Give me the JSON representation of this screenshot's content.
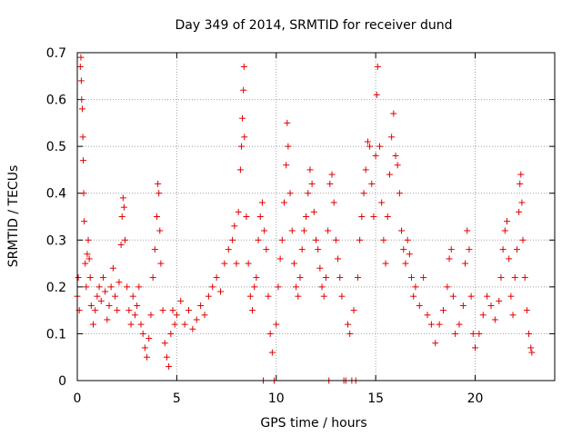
{
  "chart_data": {
    "type": "scatter",
    "title": "Day 349 of 2014, SRMTID for receiver dund",
    "xlabel": "GPS time / hours",
    "ylabel": "SRMTID / TECUs",
    "xlim": [
      0,
      24
    ],
    "ylim": [
      0,
      0.7
    ],
    "x_ticks": [
      0,
      5,
      10,
      15,
      20
    ],
    "x_tick_labels": [
      "0",
      "5",
      "10",
      "15",
      "20"
    ],
    "y_ticks": [
      0,
      0.1,
      0.2,
      0.3,
      0.4,
      0.5,
      0.6,
      0.7
    ],
    "y_tick_labels": [
      "0",
      "0.1",
      "0.2",
      "0.3",
      "0.4",
      "0.5",
      "0.6",
      "0.7"
    ],
    "grid": true,
    "marker": "+",
    "series": [
      {
        "name": "SRMTID",
        "color": "#e00000",
        "points": [
          [
            0.0,
            0.18
          ],
          [
            0.05,
            0.22
          ],
          [
            0.1,
            0.15
          ],
          [
            0.15,
            0.67
          ],
          [
            0.18,
            0.69
          ],
          [
            0.2,
            0.64
          ],
          [
            0.22,
            0.6
          ],
          [
            0.25,
            0.58
          ],
          [
            0.28,
            0.52
          ],
          [
            0.3,
            0.47
          ],
          [
            0.32,
            0.4
          ],
          [
            0.35,
            0.34
          ],
          [
            0.4,
            0.25
          ],
          [
            0.45,
            0.2
          ],
          [
            0.5,
            0.27
          ],
          [
            0.55,
            0.3
          ],
          [
            0.6,
            0.26
          ],
          [
            0.65,
            0.22
          ],
          [
            0.7,
            0.16
          ],
          [
            0.8,
            0.12
          ],
          [
            0.9,
            0.15
          ],
          [
            1.0,
            0.18
          ],
          [
            1.1,
            0.2
          ],
          [
            1.2,
            0.17
          ],
          [
            1.3,
            0.22
          ],
          [
            1.4,
            0.19
          ],
          [
            1.5,
            0.13
          ],
          [
            1.6,
            0.16
          ],
          [
            1.7,
            0.2
          ],
          [
            1.8,
            0.24
          ],
          [
            1.9,
            0.18
          ],
          [
            2.0,
            0.15
          ],
          [
            2.1,
            0.21
          ],
          [
            2.2,
            0.29
          ],
          [
            2.25,
            0.35
          ],
          [
            2.3,
            0.39
          ],
          [
            2.35,
            0.37
          ],
          [
            2.4,
            0.3
          ],
          [
            2.5,
            0.2
          ],
          [
            2.6,
            0.15
          ],
          [
            2.7,
            0.12
          ],
          [
            2.8,
            0.18
          ],
          [
            2.9,
            0.14
          ],
          [
            3.0,
            0.16
          ],
          [
            3.1,
            0.2
          ],
          [
            3.2,
            0.12
          ],
          [
            3.3,
            0.1
          ],
          [
            3.4,
            0.07
          ],
          [
            3.5,
            0.05
          ],
          [
            3.6,
            0.09
          ],
          [
            3.7,
            0.14
          ],
          [
            3.8,
            0.22
          ],
          [
            3.9,
            0.28
          ],
          [
            4.0,
            0.35
          ],
          [
            4.05,
            0.42
          ],
          [
            4.1,
            0.4
          ],
          [
            4.15,
            0.32
          ],
          [
            4.2,
            0.25
          ],
          [
            4.3,
            0.15
          ],
          [
            4.4,
            0.08
          ],
          [
            4.5,
            0.05
          ],
          [
            4.6,
            0.03
          ],
          [
            4.7,
            0.1
          ],
          [
            4.8,
            0.15
          ],
          [
            4.9,
            0.12
          ],
          [
            5.0,
            0.14
          ],
          [
            5.2,
            0.17
          ],
          [
            5.4,
            0.12
          ],
          [
            5.6,
            0.15
          ],
          [
            5.8,
            0.11
          ],
          [
            6.0,
            0.13
          ],
          [
            6.2,
            0.16
          ],
          [
            6.4,
            0.14
          ],
          [
            6.6,
            0.18
          ],
          [
            6.8,
            0.2
          ],
          [
            7.0,
            0.22
          ],
          [
            7.2,
            0.19
          ],
          [
            7.4,
            0.25
          ],
          [
            7.6,
            0.28
          ],
          [
            7.8,
            0.3
          ],
          [
            7.9,
            0.33
          ],
          [
            8.0,
            0.25
          ],
          [
            8.1,
            0.36
          ],
          [
            8.2,
            0.45
          ],
          [
            8.25,
            0.5
          ],
          [
            8.3,
            0.56
          ],
          [
            8.35,
            0.62
          ],
          [
            8.38,
            0.67
          ],
          [
            8.4,
            0.52
          ],
          [
            8.5,
            0.35
          ],
          [
            8.6,
            0.25
          ],
          [
            8.7,
            0.18
          ],
          [
            8.8,
            0.15
          ],
          [
            8.9,
            0.2
          ],
          [
            9.0,
            0.22
          ],
          [
            9.1,
            0.3
          ],
          [
            9.2,
            0.35
          ],
          [
            9.3,
            0.38
          ],
          [
            9.35,
            0.0
          ],
          [
            9.4,
            0.32
          ],
          [
            9.5,
            0.28
          ],
          [
            9.6,
            0.18
          ],
          [
            9.7,
            0.1
          ],
          [
            9.8,
            0.06
          ],
          [
            9.9,
            0.0
          ],
          [
            10.0,
            0.12
          ],
          [
            10.1,
            0.2
          ],
          [
            10.2,
            0.26
          ],
          [
            10.3,
            0.3
          ],
          [
            10.4,
            0.38
          ],
          [
            10.5,
            0.46
          ],
          [
            10.55,
            0.55
          ],
          [
            10.6,
            0.5
          ],
          [
            10.7,
            0.4
          ],
          [
            10.8,
            0.32
          ],
          [
            10.9,
            0.25
          ],
          [
            11.0,
            0.2
          ],
          [
            11.1,
            0.18
          ],
          [
            11.2,
            0.22
          ],
          [
            11.3,
            0.28
          ],
          [
            11.4,
            0.32
          ],
          [
            11.5,
            0.35
          ],
          [
            11.6,
            0.4
          ],
          [
            11.7,
            0.45
          ],
          [
            11.8,
            0.42
          ],
          [
            11.9,
            0.36
          ],
          [
            12.0,
            0.3
          ],
          [
            12.1,
            0.28
          ],
          [
            12.2,
            0.24
          ],
          [
            12.3,
            0.2
          ],
          [
            12.4,
            0.18
          ],
          [
            12.5,
            0.22
          ],
          [
            12.6,
            0.32
          ],
          [
            12.7,
            0.42
          ],
          [
            12.8,
            0.44
          ],
          [
            12.9,
            0.38
          ],
          [
            12.65,
            0.0
          ],
          [
            13.0,
            0.3
          ],
          [
            13.1,
            0.26
          ],
          [
            13.2,
            0.22
          ],
          [
            13.3,
            0.18
          ],
          [
            13.4,
            0.0
          ],
          [
            13.5,
            0.0
          ],
          [
            13.6,
            0.12
          ],
          [
            13.7,
            0.1
          ],
          [
            13.8,
            0.0
          ],
          [
            13.9,
            0.15
          ],
          [
            14.0,
            0.0
          ],
          [
            14.1,
            0.22
          ],
          [
            14.2,
            0.3
          ],
          [
            14.3,
            0.35
          ],
          [
            14.4,
            0.4
          ],
          [
            14.5,
            0.45
          ],
          [
            14.6,
            0.51
          ],
          [
            14.7,
            0.5
          ],
          [
            14.8,
            0.42
          ],
          [
            14.9,
            0.35
          ],
          [
            15.0,
            0.48
          ],
          [
            15.05,
            0.61
          ],
          [
            15.1,
            0.67
          ],
          [
            15.2,
            0.5
          ],
          [
            15.3,
            0.38
          ],
          [
            15.4,
            0.3
          ],
          [
            15.5,
            0.25
          ],
          [
            15.6,
            0.35
          ],
          [
            15.7,
            0.44
          ],
          [
            15.8,
            0.52
          ],
          [
            15.9,
            0.57
          ],
          [
            16.0,
            0.48
          ],
          [
            16.1,
            0.46
          ],
          [
            16.2,
            0.4
          ],
          [
            16.3,
            0.32
          ],
          [
            16.4,
            0.28
          ],
          [
            16.5,
            0.25
          ],
          [
            16.6,
            0.3
          ],
          [
            16.7,
            0.27
          ],
          [
            16.8,
            0.22
          ],
          [
            16.9,
            0.18
          ],
          [
            17.0,
            0.2
          ],
          [
            17.2,
            0.16
          ],
          [
            17.4,
            0.22
          ],
          [
            17.6,
            0.14
          ],
          [
            17.8,
            0.12
          ],
          [
            18.0,
            0.08
          ],
          [
            18.2,
            0.12
          ],
          [
            18.4,
            0.15
          ],
          [
            18.6,
            0.2
          ],
          [
            18.7,
            0.26
          ],
          [
            18.8,
            0.28
          ],
          [
            18.9,
            0.18
          ],
          [
            19.0,
            0.1
          ],
          [
            19.2,
            0.12
          ],
          [
            19.4,
            0.16
          ],
          [
            19.5,
            0.25
          ],
          [
            19.6,
            0.32
          ],
          [
            19.7,
            0.28
          ],
          [
            19.8,
            0.18
          ],
          [
            19.9,
            0.1
          ],
          [
            20.0,
            0.07
          ],
          [
            20.2,
            0.1
          ],
          [
            20.4,
            0.14
          ],
          [
            20.6,
            0.18
          ],
          [
            20.8,
            0.16
          ],
          [
            21.0,
            0.13
          ],
          [
            21.2,
            0.17
          ],
          [
            21.3,
            0.22
          ],
          [
            21.4,
            0.28
          ],
          [
            21.5,
            0.32
          ],
          [
            21.6,
            0.34
          ],
          [
            21.7,
            0.26
          ],
          [
            21.8,
            0.18
          ],
          [
            21.9,
            0.14
          ],
          [
            22.0,
            0.22
          ],
          [
            22.1,
            0.28
          ],
          [
            22.2,
            0.36
          ],
          [
            22.25,
            0.42
          ],
          [
            22.3,
            0.44
          ],
          [
            22.35,
            0.38
          ],
          [
            22.4,
            0.3
          ],
          [
            22.5,
            0.22
          ],
          [
            22.6,
            0.15
          ],
          [
            22.7,
            0.1
          ],
          [
            22.8,
            0.07
          ],
          [
            22.85,
            0.06
          ]
        ]
      }
    ]
  }
}
